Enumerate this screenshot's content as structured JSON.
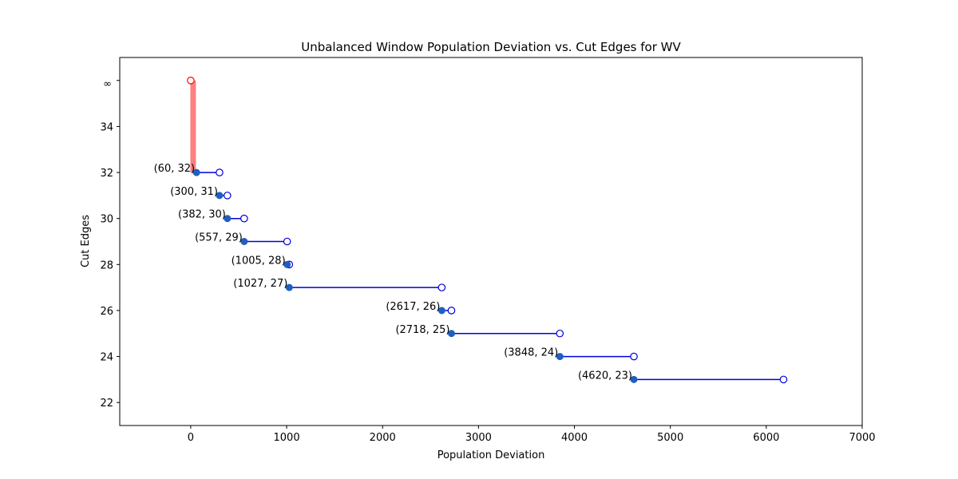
{
  "chart_data": {
    "type": "scatter",
    "title": "Unbalanced Window Population Deviation vs. Cut Edges for WV",
    "xlabel": "Population Deviation",
    "ylabel": "Cut Edges",
    "xlim": [
      -740,
      7000
    ],
    "ylim": [
      21,
      37
    ],
    "x_ticks": [
      0,
      1000,
      2000,
      3000,
      4000,
      5000,
      6000,
      7000
    ],
    "y_ticks": [
      22,
      24,
      26,
      28,
      30,
      32,
      34
    ],
    "y_tick_labels": [
      "22",
      "24",
      "26",
      "28",
      "30",
      "32",
      "34"
    ],
    "infinity_label": "∞",
    "infinity_y": 36,
    "infinity_point": {
      "x": 0,
      "y": 36,
      "color": "#ff0000"
    },
    "infinity_bar": {
      "x": 25,
      "y_from": 32,
      "y_to": 36,
      "color": "#ff8080"
    },
    "points": [
      {
        "x": 60,
        "y": 32,
        "x_end": 300,
        "label": "(60, 32)"
      },
      {
        "x": 300,
        "y": 31,
        "x_end": 382,
        "label": "(300, 31)"
      },
      {
        "x": 382,
        "y": 30,
        "x_end": 557,
        "label": "(382, 30)"
      },
      {
        "x": 557,
        "y": 29,
        "x_end": 1005,
        "label": "(557, 29)"
      },
      {
        "x": 1005,
        "y": 28,
        "x_end": 1027,
        "label": "(1005, 28)"
      },
      {
        "x": 1027,
        "y": 27,
        "x_end": 2617,
        "label": "(1027, 27)"
      },
      {
        "x": 2617,
        "y": 26,
        "x_end": 2718,
        "label": "(2617, 26)"
      },
      {
        "x": 2718,
        "y": 25,
        "x_end": 3848,
        "label": "(2718, 25)"
      },
      {
        "x": 3848,
        "y": 24,
        "x_end": 4620,
        "label": "(3848, 24)"
      },
      {
        "x": 4620,
        "y": 23,
        "x_end": 6180,
        "label": "(4620, 23)"
      }
    ],
    "colors": {
      "point_fill": "#1f5fbf",
      "segment": "#0000dd",
      "open_marker": "#0000dd"
    },
    "grid": false,
    "legend": "none"
  }
}
